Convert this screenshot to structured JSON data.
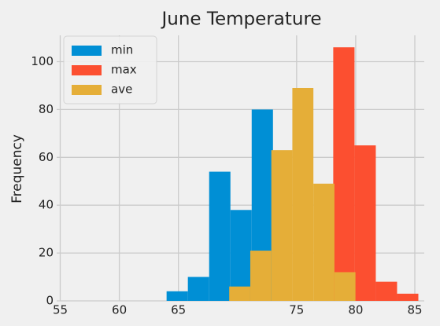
{
  "chart_data": {
    "type": "histogram",
    "title": "June Temperature",
    "y_label": "Frequency",
    "series": [
      {
        "name": "min",
        "color": "#008fd5",
        "bins": [
          64.0,
          65.8,
          67.6,
          69.4,
          71.2,
          73.0
        ],
        "values": [
          4,
          10,
          54,
          38,
          80
        ]
      },
      {
        "name": "max",
        "color": "#fc4f30",
        "bins": [
          78.1,
          79.9,
          81.7,
          83.5,
          85.3
        ],
        "values": [
          106,
          65,
          8,
          3
        ]
      },
      {
        "name": "ave",
        "color": "#e5ae38",
        "bins": [
          69.3,
          71.08,
          72.86,
          74.64,
          76.42,
          78.2,
          79.98
        ],
        "values": [
          6,
          21,
          63,
          89,
          49,
          12
        ]
      }
    ],
    "xlim": [
      54.7,
      85.8
    ],
    "xticks": [
      55,
      60,
      65,
      75,
      80,
      85
    ],
    "ylim": [
      0,
      111
    ],
    "yticks": [
      0,
      20,
      40,
      60,
      80,
      100
    ],
    "grid": true,
    "legend": "upper left"
  }
}
